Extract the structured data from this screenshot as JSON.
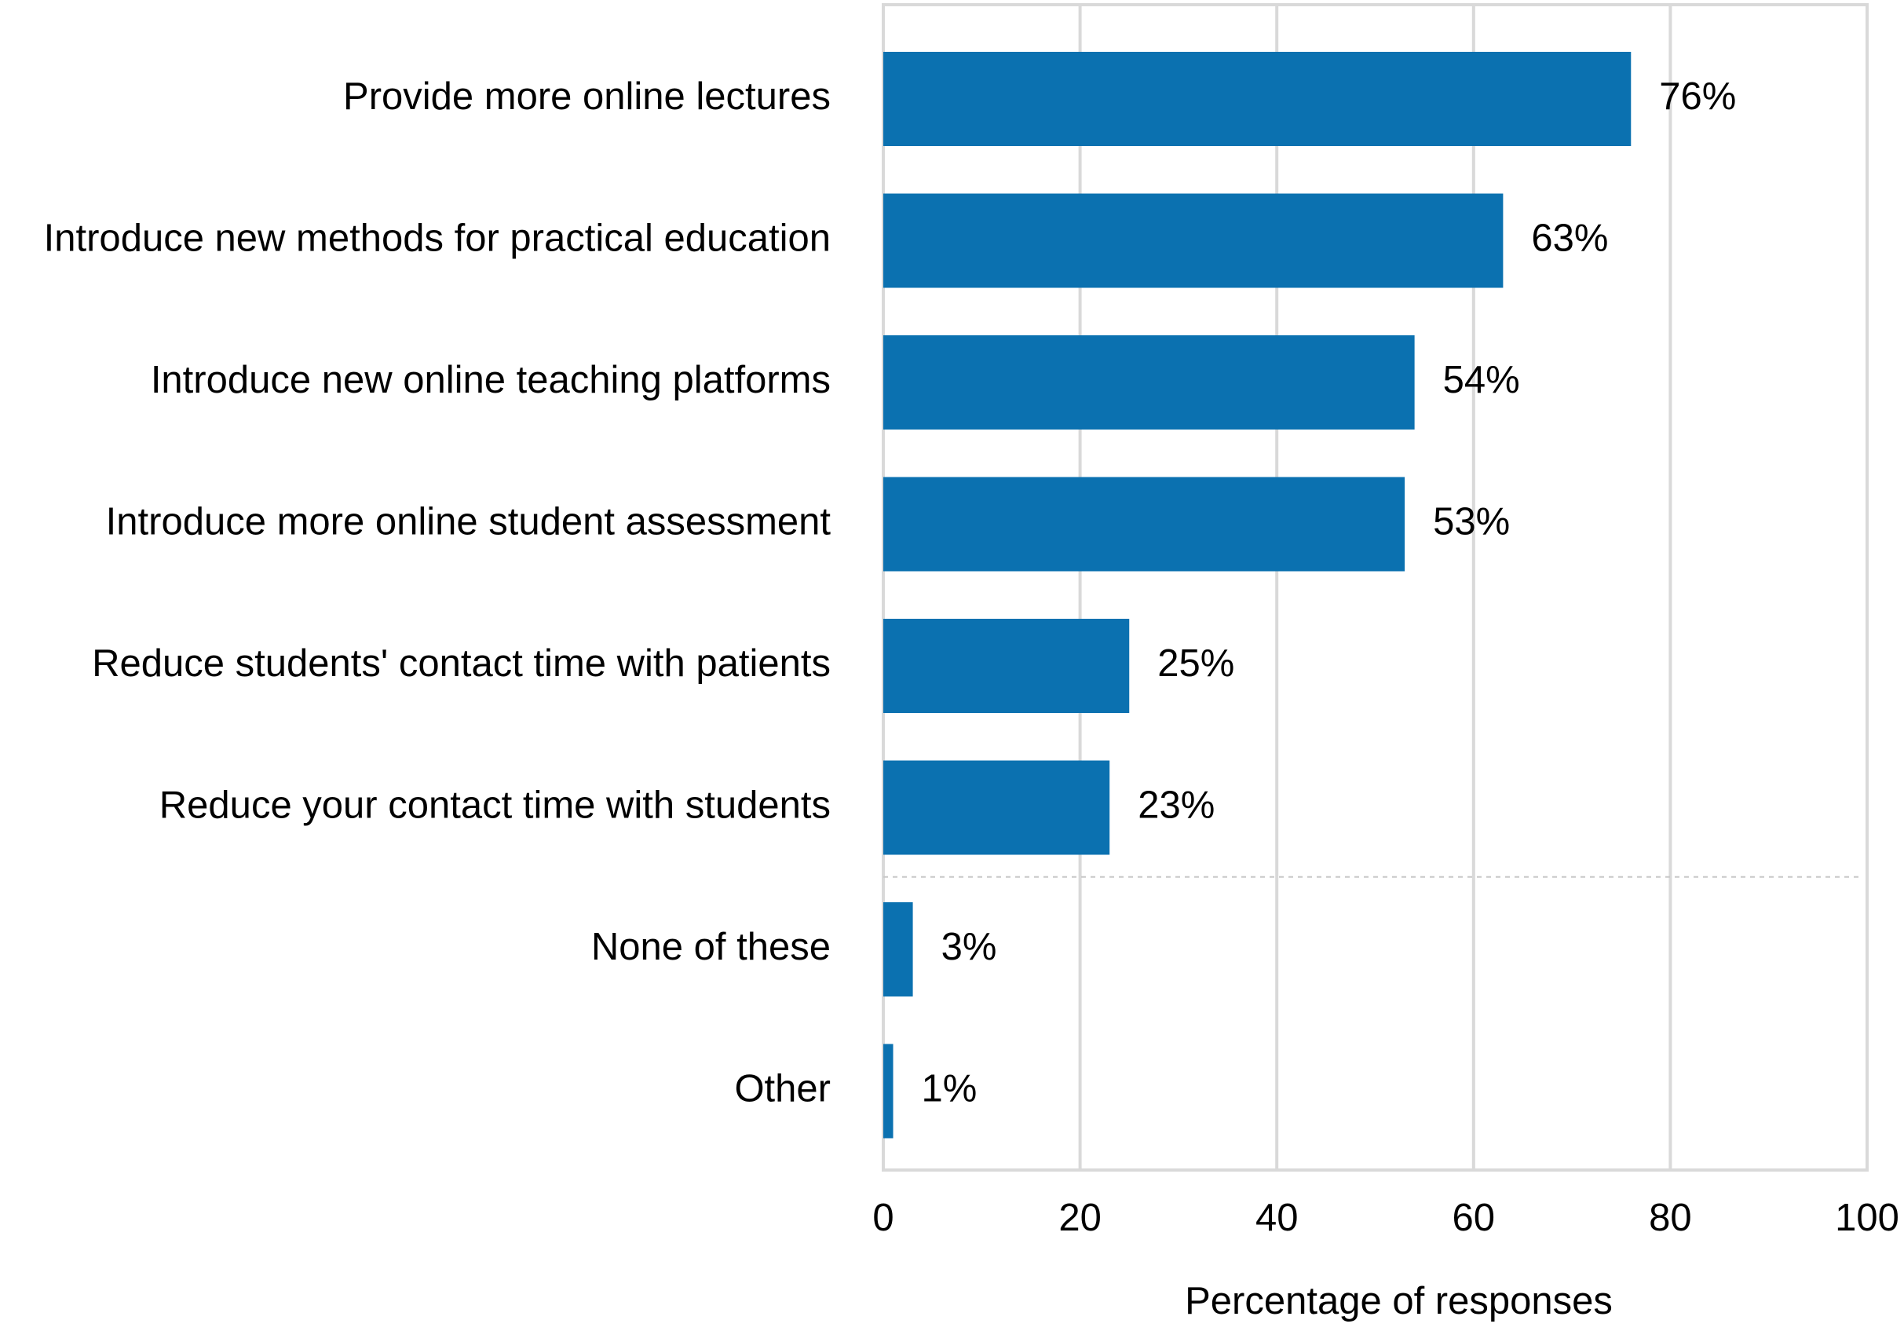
{
  "chart_data": {
    "type": "bar",
    "orientation": "horizontal",
    "categories": [
      "Provide more online lectures",
      "Introduce new methods for practical education",
      "Introduce new online teaching platforms",
      "Introduce more online student assessment",
      "Reduce students' contact time with patients",
      "Reduce your contact time with students",
      "None of these",
      "Other"
    ],
    "values": [
      76,
      63,
      54,
      53,
      25,
      23,
      3,
      1
    ],
    "value_labels": [
      "76%",
      "63%",
      "54%",
      "53%",
      "25%",
      "23%",
      "3%",
      "1%"
    ],
    "title": "",
    "xlabel": "Percentage of responses",
    "ylabel": "",
    "xlim": [
      0,
      100
    ],
    "xticks": [
      0,
      20,
      40,
      60,
      80,
      100
    ],
    "tick_labels": [
      "0",
      "20",
      "40",
      "60",
      "80",
      "100"
    ],
    "grid": true,
    "separator_after_index": 5,
    "colors": {
      "bar": "#0b71b0",
      "grid": "#d9d9d9",
      "frame": "#d9d9d9",
      "separator": "#c8c8c8"
    }
  }
}
